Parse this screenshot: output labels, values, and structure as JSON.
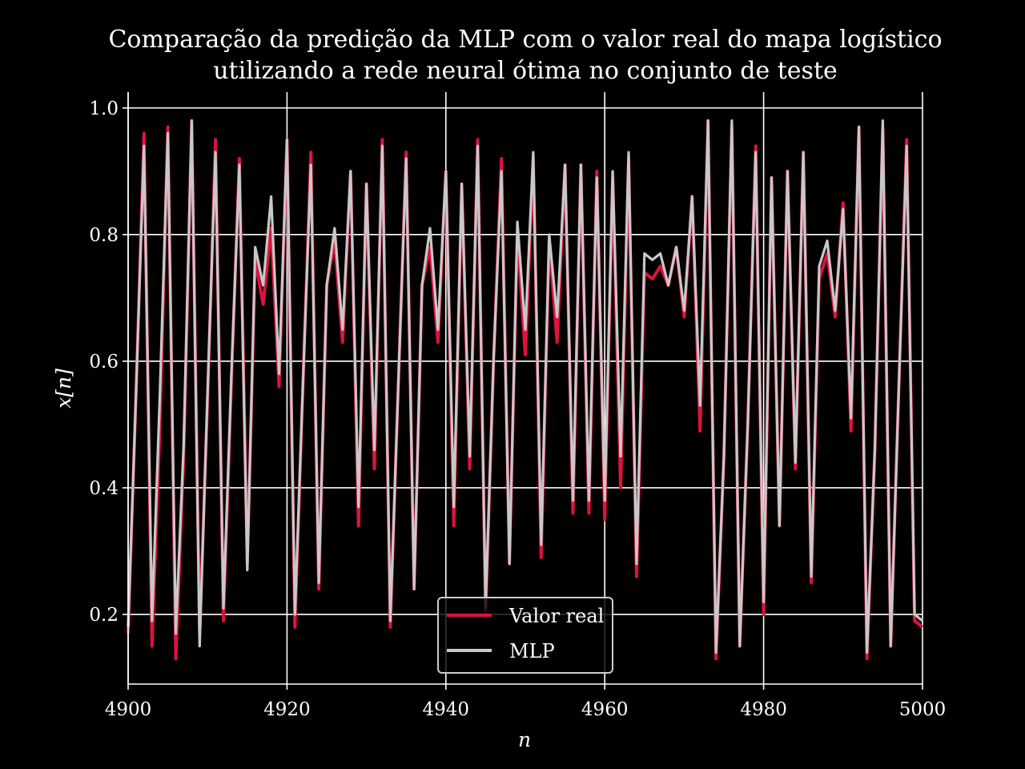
{
  "chart_data": {
    "type": "line",
    "title_line1": "Comparação da predição da MLP com o valor real do mapa logístico",
    "title_line2": "utilizando a rede neural ótima no conjunto de teste",
    "xlabel": "n",
    "ylabel": "x[n]",
    "xlim": [
      4900,
      5000
    ],
    "ylim": [
      0.09,
      1.025
    ],
    "xticks": [
      4900,
      4920,
      4940,
      4960,
      4980,
      5000
    ],
    "yticks": [
      0.2,
      0.4,
      0.6,
      0.8,
      1.0
    ],
    "xtick_labels": [
      "4900",
      "4920",
      "4940",
      "4960",
      "4980",
      "5000"
    ],
    "ytick_labels": [
      "0.2",
      "0.4",
      "0.6",
      "0.8",
      "1.0"
    ],
    "grid": true,
    "legend_position": "bottom-center",
    "x_start": 4900,
    "series": [
      {
        "name": "Valor real",
        "color": "#dc143c",
        "values": [
          0.17,
          0.55,
          0.96,
          0.15,
          0.5,
          0.97,
          0.13,
          0.45,
          0.98,
          0.17,
          0.54,
          0.95,
          0.19,
          0.57,
          0.92,
          0.28,
          0.76,
          0.69,
          0.81,
          0.56,
          0.95,
          0.18,
          0.56,
          0.93,
          0.24,
          0.72,
          0.79,
          0.63,
          0.9,
          0.34,
          0.88,
          0.43,
          0.95,
          0.18,
          0.56,
          0.93,
          0.24,
          0.72,
          0.78,
          0.63,
          0.9,
          0.34,
          0.88,
          0.43,
          0.95,
          0.2,
          0.6,
          0.92,
          0.28,
          0.8,
          0.61,
          0.92,
          0.29,
          0.79,
          0.63,
          0.91,
          0.36,
          0.91,
          0.36,
          0.9,
          0.35,
          0.89,
          0.4,
          0.92,
          0.26,
          0.74,
          0.73,
          0.75,
          0.72,
          0.78,
          0.67,
          0.86,
          0.49,
          0.98,
          0.13,
          0.45,
          0.97,
          0.15,
          0.5,
          0.94,
          0.2,
          0.89,
          0.34,
          0.9,
          0.43,
          0.93,
          0.25,
          0.73,
          0.77,
          0.67,
          0.85,
          0.49,
          0.97,
          0.13,
          0.46,
          0.97,
          0.15,
          0.55,
          0.95,
          0.19
        ],
        "end_value": 0.18
      },
      {
        "name": "MLP",
        "color": "#c8c8c8",
        "values": [
          0.18,
          0.55,
          0.94,
          0.19,
          0.55,
          0.96,
          0.17,
          0.47,
          0.98,
          0.15,
          0.55,
          0.93,
          0.21,
          0.58,
          0.91,
          0.27,
          0.78,
          0.72,
          0.86,
          0.58,
          0.95,
          0.2,
          0.56,
          0.91,
          0.25,
          0.72,
          0.81,
          0.65,
          0.9,
          0.37,
          0.88,
          0.46,
          0.94,
          0.19,
          0.56,
          0.92,
          0.24,
          0.72,
          0.81,
          0.65,
          0.9,
          0.37,
          0.88,
          0.45,
          0.94,
          0.21,
          0.6,
          0.9,
          0.28,
          0.82,
          0.65,
          0.93,
          0.31,
          0.8,
          0.67,
          0.91,
          0.38,
          0.91,
          0.38,
          0.89,
          0.38,
          0.9,
          0.45,
          0.93,
          0.28,
          0.77,
          0.76,
          0.77,
          0.72,
          0.78,
          0.68,
          0.86,
          0.53,
          0.98,
          0.14,
          0.45,
          0.98,
          0.15,
          0.5,
          0.93,
          0.22,
          0.89,
          0.34,
          0.9,
          0.44,
          0.93,
          0.26,
          0.75,
          0.79,
          0.68,
          0.84,
          0.51,
          0.97,
          0.14,
          0.46,
          0.98,
          0.15,
          0.55,
          0.94,
          0.2
        ],
        "end_value": 0.19
      }
    ]
  }
}
